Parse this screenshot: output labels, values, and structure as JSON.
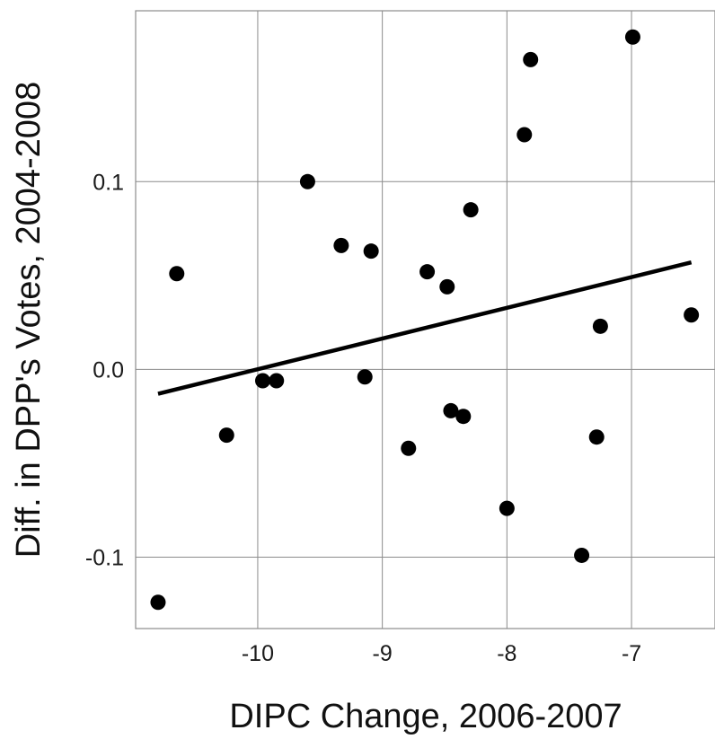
{
  "chart_data": {
    "type": "scatter",
    "xlabel": "DIPC Change, 2006-2007",
    "ylabel": "Diff. in DPP's Votes, 2004-2008",
    "xlim": [
      -10.98,
      -6.33
    ],
    "ylim": [
      -0.138,
      0.191
    ],
    "x_ticks": [
      {
        "value": -10,
        "label": "-10"
      },
      {
        "value": -9,
        "label": "-9"
      },
      {
        "value": -8,
        "label": "-8"
      },
      {
        "value": -7,
        "label": "-7"
      }
    ],
    "y_ticks": [
      {
        "value": -0.1,
        "label": "-0.1"
      },
      {
        "value": 0.0,
        "label": "0.0"
      },
      {
        "value": 0.1,
        "label": "0.1"
      }
    ],
    "grid": true,
    "points": [
      {
        "x": -10.8,
        "y": -0.124
      },
      {
        "x": -10.65,
        "y": 0.051
      },
      {
        "x": -10.25,
        "y": -0.035
      },
      {
        "x": -9.96,
        "y": -0.006
      },
      {
        "x": -9.85,
        "y": -0.006
      },
      {
        "x": -9.6,
        "y": 0.1
      },
      {
        "x": -9.33,
        "y": 0.066
      },
      {
        "x": -9.14,
        "y": -0.004
      },
      {
        "x": -9.09,
        "y": 0.063
      },
      {
        "x": -8.79,
        "y": -0.042
      },
      {
        "x": -8.64,
        "y": 0.052
      },
      {
        "x": -8.48,
        "y": 0.044
      },
      {
        "x": -8.45,
        "y": -0.022
      },
      {
        "x": -8.35,
        "y": -0.025
      },
      {
        "x": -8.29,
        "y": 0.085
      },
      {
        "x": -8.0,
        "y": -0.074
      },
      {
        "x": -7.86,
        "y": 0.125
      },
      {
        "x": -7.81,
        "y": 0.165
      },
      {
        "x": -7.4,
        "y": -0.099
      },
      {
        "x": -7.28,
        "y": -0.036
      },
      {
        "x": -7.25,
        "y": 0.023
      },
      {
        "x": -6.99,
        "y": 0.177
      },
      {
        "x": -6.52,
        "y": 0.029
      }
    ],
    "fit_line": {
      "x": [
        -10.8,
        -6.52
      ],
      "y": [
        -0.013,
        0.057
      ]
    },
    "colors": {
      "points": "#000000",
      "fit_line": "#000000",
      "grid": "#8c8c8c",
      "panel_border": "#8c8c8c"
    }
  }
}
